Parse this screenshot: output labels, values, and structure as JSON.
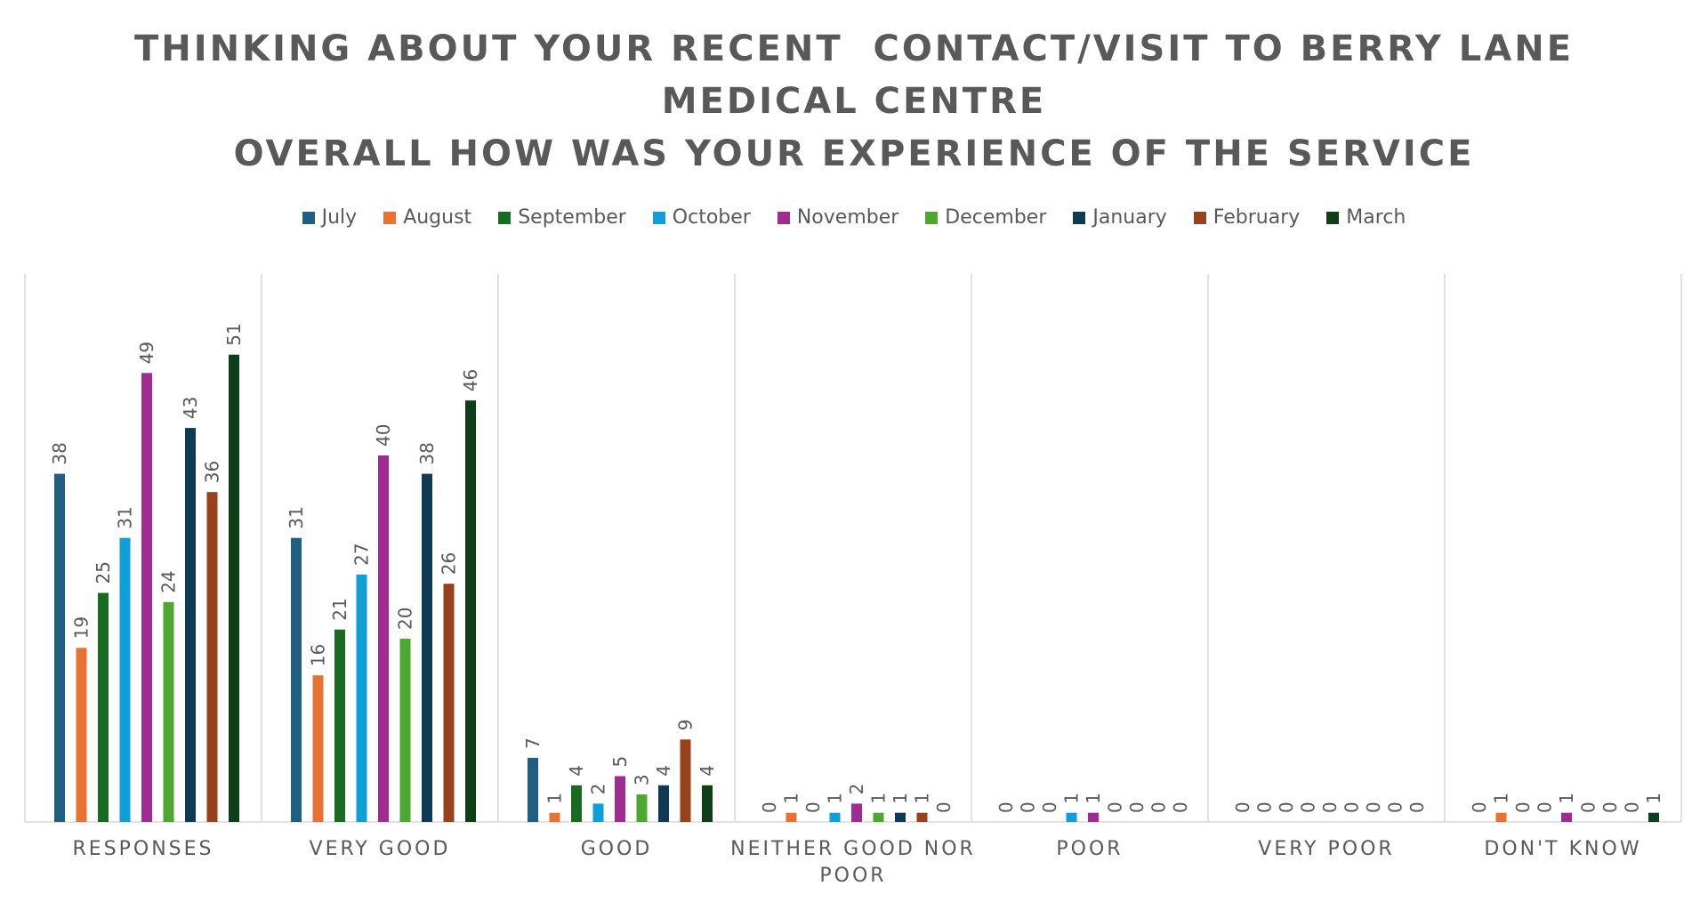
{
  "chart_data": {
    "type": "bar",
    "title_lines": [
      "THINKING ABOUT YOUR RECENT  CONTACT/VISIT TO BERRY LANE",
      "MEDICAL CENTRE",
      "OVERALL HOW WAS YOUR EXPERIENCE OF THE SERVICE"
    ],
    "categories": [
      "RESPONSES",
      "VERY GOOD",
      "GOOD",
      "NEITHER GOOD NOR\nPOOR",
      "POOR",
      "VERY POOR",
      "DON'T KNOW"
    ],
    "legend_position": "top",
    "grid": false,
    "ylim": [
      0,
      60
    ],
    "series": [
      {
        "name": "July",
        "color": "#1F5F82",
        "values": [
          38,
          31,
          7,
          0,
          0,
          0,
          0
        ]
      },
      {
        "name": "August",
        "color": "#E97132",
        "values": [
          19,
          16,
          1,
          1,
          0,
          0,
          1
        ]
      },
      {
        "name": "September",
        "color": "#196B24",
        "values": [
          25,
          21,
          4,
          0,
          0,
          0,
          0
        ]
      },
      {
        "name": "October",
        "color": "#0F9ED5",
        "values": [
          31,
          27,
          2,
          1,
          1,
          0,
          0
        ]
      },
      {
        "name": "November",
        "color": "#A02B93",
        "values": [
          49,
          40,
          5,
          2,
          1,
          0,
          1
        ]
      },
      {
        "name": "December",
        "color": "#4EA72E",
        "values": [
          24,
          20,
          3,
          1,
          0,
          0,
          0
        ]
      },
      {
        "name": "January",
        "color": "#0E3A53",
        "values": [
          43,
          38,
          4,
          1,
          0,
          0,
          0
        ]
      },
      {
        "name": "February",
        "color": "#99411C",
        "values": [
          36,
          26,
          9,
          1,
          0,
          0,
          0
        ]
      },
      {
        "name": "March",
        "color": "#0F3F18",
        "values": [
          51,
          46,
          4,
          0,
          0,
          0,
          1
        ]
      }
    ]
  }
}
